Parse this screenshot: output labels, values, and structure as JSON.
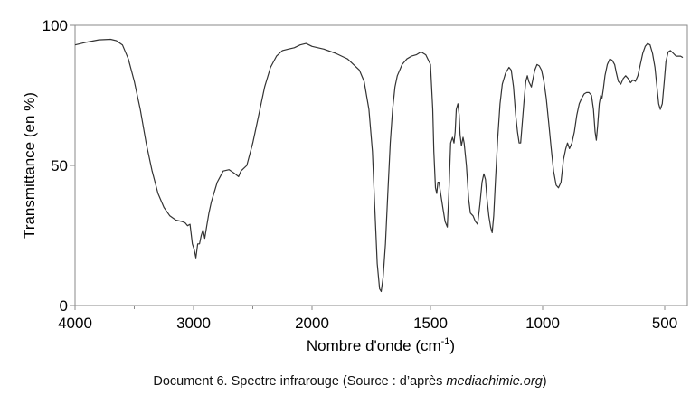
{
  "chart_data": {
    "type": "line",
    "title": "",
    "xlabel": "Nombre d'onde (cm",
    "xlabel_sup": "-1",
    "xlabel_end": ")",
    "ylabel": "Transmittance (en %)",
    "xlim": [
      4000,
      400
    ],
    "ylim": [
      0,
      100
    ],
    "x_reversed": true,
    "x_ticks": [
      "4000",
      "3000",
      "2000",
      "1500",
      "1000",
      "500"
    ],
    "x_tick_values": [
      4000,
      3000,
      2000,
      1500,
      1000,
      500
    ],
    "y_ticks": [
      "0",
      "50",
      "100"
    ],
    "y_tick_values": [
      0,
      50,
      100
    ],
    "x_minor_tick_values": [
      3500,
      2500
    ],
    "grid": false,
    "series": [
      {
        "color": "#333333",
        "points": [
          [
            4000,
            93
          ],
          [
            3900,
            94
          ],
          [
            3800,
            94.8
          ],
          [
            3700,
            95
          ],
          [
            3650,
            94.5
          ],
          [
            3600,
            93
          ],
          [
            3550,
            88
          ],
          [
            3500,
            80
          ],
          [
            3450,
            70
          ],
          [
            3400,
            58
          ],
          [
            3350,
            48
          ],
          [
            3300,
            40
          ],
          [
            3250,
            35
          ],
          [
            3200,
            32
          ],
          [
            3150,
            30.5
          ],
          [
            3100,
            30
          ],
          [
            3070,
            29.5
          ],
          [
            3050,
            28.5
          ],
          [
            3030,
            29
          ],
          [
            3010,
            22
          ],
          [
            2995,
            20
          ],
          [
            2980,
            17
          ],
          [
            2965,
            22
          ],
          [
            2950,
            22
          ],
          [
            2935,
            25
          ],
          [
            2920,
            27
          ],
          [
            2905,
            24
          ],
          [
            2890,
            28
          ],
          [
            2870,
            33
          ],
          [
            2850,
            37
          ],
          [
            2800,
            44
          ],
          [
            2750,
            48
          ],
          [
            2700,
            48.5
          ],
          [
            2650,
            47
          ],
          [
            2620,
            46
          ],
          [
            2600,
            48
          ],
          [
            2550,
            50
          ],
          [
            2500,
            58
          ],
          [
            2450,
            68
          ],
          [
            2400,
            78
          ],
          [
            2350,
            85
          ],
          [
            2300,
            89
          ],
          [
            2250,
            91
          ],
          [
            2200,
            91.5
          ],
          [
            2150,
            92
          ],
          [
            2100,
            93
          ],
          [
            2050,
            93.5
          ],
          [
            2000,
            92.5
          ],
          [
            1950,
            91.5
          ],
          [
            1900,
            90
          ],
          [
            1850,
            88
          ],
          [
            1800,
            84
          ],
          [
            1780,
            80
          ],
          [
            1760,
            70
          ],
          [
            1745,
            55
          ],
          [
            1735,
            35
          ],
          [
            1725,
            15
          ],
          [
            1715,
            6
          ],
          [
            1708,
            5
          ],
          [
            1700,
            10
          ],
          [
            1690,
            22
          ],
          [
            1680,
            40
          ],
          [
            1670,
            58
          ],
          [
            1660,
            70
          ],
          [
            1650,
            78
          ],
          [
            1640,
            82
          ],
          [
            1620,
            86
          ],
          [
            1600,
            88
          ],
          [
            1580,
            89
          ],
          [
            1560,
            89.5
          ],
          [
            1540,
            90.5
          ],
          [
            1520,
            89.5
          ],
          [
            1500,
            86
          ],
          [
            1490,
            70
          ],
          [
            1485,
            55
          ],
          [
            1478,
            42
          ],
          [
            1472,
            40
          ],
          [
            1467,
            44
          ],
          [
            1462,
            44
          ],
          [
            1455,
            40
          ],
          [
            1445,
            35
          ],
          [
            1435,
            30
          ],
          [
            1425,
            28
          ],
          [
            1418,
            40
          ],
          [
            1410,
            58
          ],
          [
            1402,
            60
          ],
          [
            1395,
            58
          ],
          [
            1390,
            62
          ],
          [
            1385,
            70
          ],
          [
            1378,
            72
          ],
          [
            1372,
            68
          ],
          [
            1368,
            61
          ],
          [
            1362,
            57
          ],
          [
            1355,
            60
          ],
          [
            1350,
            58
          ],
          [
            1340,
            50
          ],
          [
            1330,
            38
          ],
          [
            1322,
            33
          ],
          [
            1310,
            32
          ],
          [
            1300,
            30
          ],
          [
            1290,
            29
          ],
          [
            1280,
            36
          ],
          [
            1270,
            44
          ],
          [
            1262,
            47
          ],
          [
            1255,
            45
          ],
          [
            1248,
            38
          ],
          [
            1240,
            32
          ],
          [
            1232,
            28
          ],
          [
            1225,
            26
          ],
          [
            1218,
            32
          ],
          [
            1210,
            45
          ],
          [
            1200,
            60
          ],
          [
            1190,
            72
          ],
          [
            1180,
            79
          ],
          [
            1165,
            83
          ],
          [
            1150,
            85
          ],
          [
            1140,
            84
          ],
          [
            1130,
            78
          ],
          [
            1120,
            68
          ],
          [
            1112,
            62
          ],
          [
            1105,
            58
          ],
          [
            1098,
            58
          ],
          [
            1090,
            66
          ],
          [
            1082,
            74
          ],
          [
            1075,
            80
          ],
          [
            1068,
            82
          ],
          [
            1062,
            80
          ],
          [
            1056,
            79
          ],
          [
            1050,
            78
          ],
          [
            1045,
            80
          ],
          [
            1035,
            84
          ],
          [
            1025,
            86
          ],
          [
            1015,
            85.5
          ],
          [
            1005,
            84
          ],
          [
            995,
            80
          ],
          [
            985,
            74
          ],
          [
            975,
            65
          ],
          [
            965,
            56
          ],
          [
            955,
            48
          ],
          [
            945,
            43
          ],
          [
            935,
            42
          ],
          [
            925,
            44
          ],
          [
            915,
            52
          ],
          [
            905,
            56
          ],
          [
            898,
            58
          ],
          [
            890,
            56
          ],
          [
            880,
            58
          ],
          [
            870,
            62
          ],
          [
            860,
            68
          ],
          [
            850,
            72
          ],
          [
            840,
            74
          ],
          [
            830,
            75.5
          ],
          [
            820,
            76
          ],
          [
            810,
            76
          ],
          [
            800,
            75
          ],
          [
            792,
            70
          ],
          [
            785,
            62
          ],
          [
            780,
            59
          ],
          [
            775,
            64
          ],
          [
            768,
            72
          ],
          [
            762,
            75
          ],
          [
            757,
            74
          ],
          [
            752,
            77
          ],
          [
            745,
            82
          ],
          [
            735,
            86
          ],
          [
            725,
            88
          ],
          [
            715,
            87.5
          ],
          [
            705,
            86
          ],
          [
            698,
            83
          ],
          [
            690,
            80
          ],
          [
            680,
            79
          ],
          [
            670,
            81
          ],
          [
            660,
            82
          ],
          [
            650,
            81
          ],
          [
            640,
            79.5
          ],
          [
            630,
            80.5
          ],
          [
            620,
            80
          ],
          [
            610,
            82
          ],
          [
            600,
            86
          ],
          [
            590,
            90
          ],
          [
            580,
            92.5
          ],
          [
            570,
            93.5
          ],
          [
            560,
            93
          ],
          [
            550,
            90
          ],
          [
            540,
            85
          ],
          [
            532,
            78
          ],
          [
            525,
            72
          ],
          [
            518,
            70
          ],
          [
            510,
            72
          ],
          [
            502,
            80
          ],
          [
            495,
            87
          ],
          [
            485,
            90.5
          ],
          [
            475,
            91
          ],
          [
            462,
            90
          ],
          [
            450,
            89
          ],
          [
            440,
            89
          ],
          [
            430,
            89
          ],
          [
            420,
            88.5
          ]
        ]
      }
    ]
  },
  "caption": {
    "prefix": "Document 6. Spectre infrarouge (Source : d’après ",
    "italic": "mediachimie.org",
    "suffix": ")"
  }
}
